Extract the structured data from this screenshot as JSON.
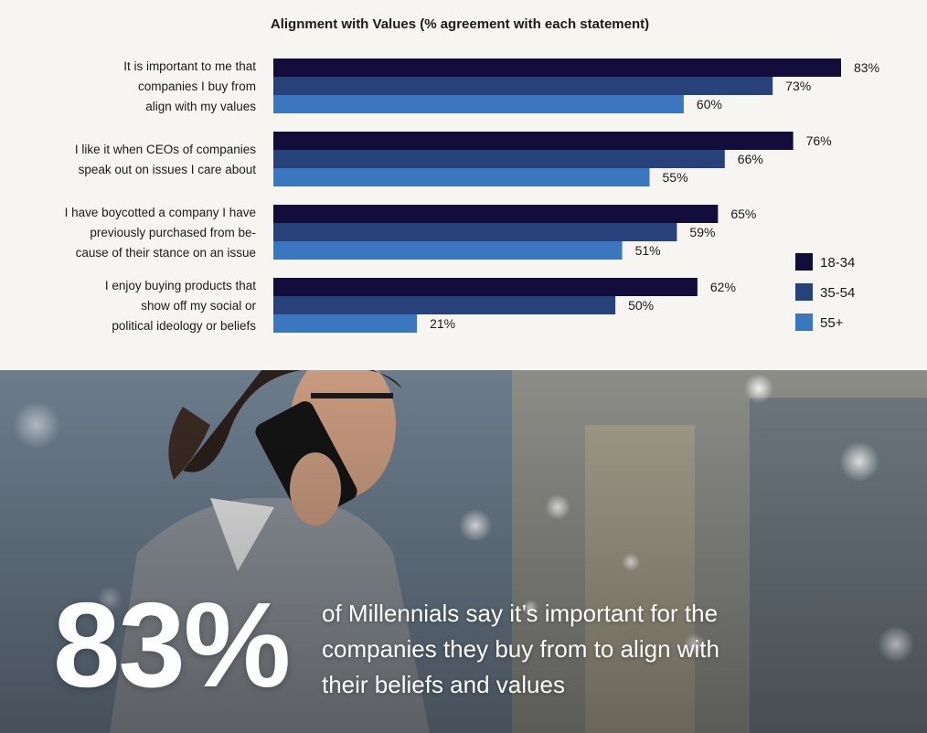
{
  "colors": {
    "series_18_34": "#120d3a",
    "series_35_54": "#27427a",
    "series_55_plus": "#3a77bf",
    "text": "#1a1a1a",
    "background": "#f6f5f2"
  },
  "chart_data": {
    "type": "bar",
    "orientation": "horizontal",
    "title": "Alignment with Values (% agreement with each statement)",
    "categories": [
      [
        "It is important to me that",
        "companies I buy from",
        "align with my values"
      ],
      [
        "I like it when CEOs of companies",
        "speak out on issues I care about"
      ],
      [
        "I have boycotted a company I have",
        "previously purchased from be-",
        "cause of their stance on an issue"
      ],
      [
        "I enjoy buying products that",
        "show off my social or",
        "political ideology or beliefs"
      ]
    ],
    "series": [
      {
        "name": "18-34",
        "values": [
          83,
          76,
          65,
          62
        ]
      },
      {
        "name": "35-54",
        "values": [
          73,
          66,
          59,
          50
        ]
      },
      {
        "name": "55+",
        "values": [
          60,
          55,
          51,
          21
        ]
      }
    ],
    "value_suffix": "%",
    "xlim": [
      0,
      83
    ],
    "grid": false,
    "legend_placement": "right"
  },
  "callout": {
    "stat": "83%",
    "text": "of Millennials say it’s important for the companies they buy from to align with their beliefs and values"
  },
  "photo_icon": "woman-on-phone-photo"
}
